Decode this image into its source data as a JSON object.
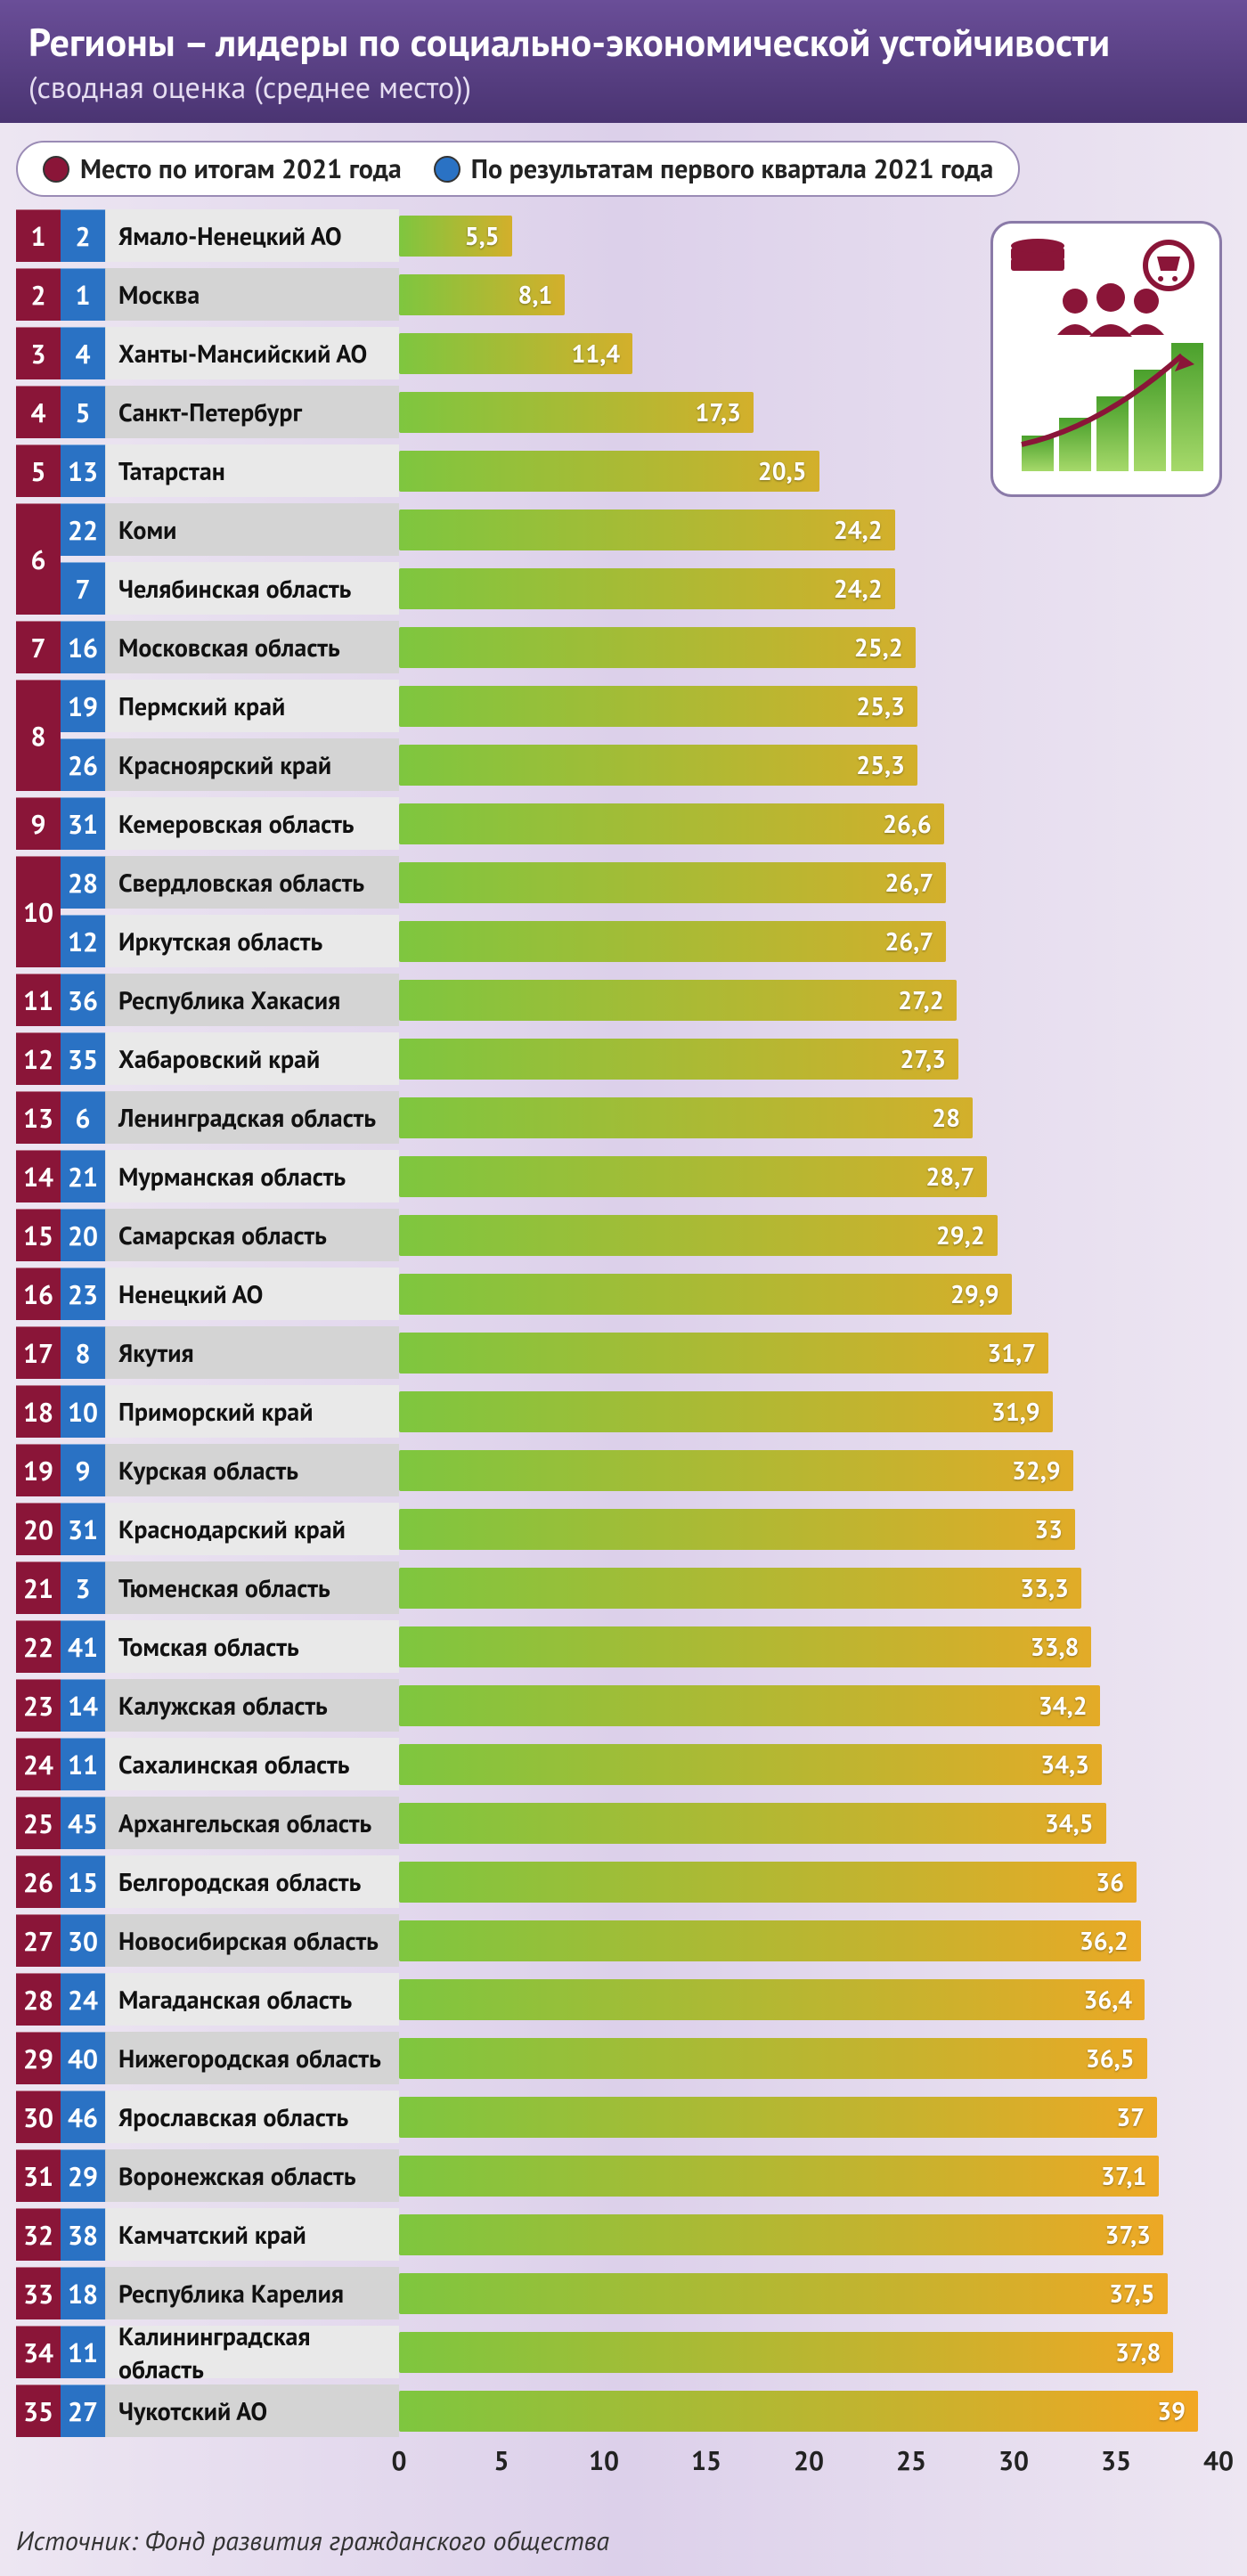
{
  "header": {
    "title": "Регионы – лидеры по социально-экономической устойчивости",
    "subtitle": "(сводная оценка (среднее место))"
  },
  "legend": {
    "items": [
      {
        "color": "#8a1538",
        "label": "Место по итогам 2021 года"
      },
      {
        "color": "#2a72c4",
        "label": "По результатам первого квартала 2021 года"
      }
    ]
  },
  "chart": {
    "type": "bar",
    "x_max": 40,
    "x_tick_step": 5,
    "bar_gradient": {
      "from": "#7ec63f",
      "to": "#f5a623"
    },
    "rank_red_color": "#8a1538",
    "rank_blue_color": "#2a72c4",
    "row_alt_colors": [
      "#e9e9e9",
      "#d4d4d4"
    ],
    "value_color_inside": "#ffffff",
    "value_color_outside": "#f5a623",
    "rows": [
      {
        "rank_year": 1,
        "rank_q1": 2,
        "name": "Ямало-Ненецкий АО",
        "value": 5.5,
        "label": "5,5"
      },
      {
        "rank_year": 2,
        "rank_q1": 1,
        "name": "Москва",
        "value": 8.1,
        "label": "8,1"
      },
      {
        "rank_year": 3,
        "rank_q1": 4,
        "name": "Ханты-Мансийский АО",
        "value": 11.4,
        "label": "11,4"
      },
      {
        "rank_year": 4,
        "rank_q1": 5,
        "name": "Санкт-Петербург",
        "value": 17.3,
        "label": "17,3"
      },
      {
        "rank_year": 5,
        "rank_q1": 13,
        "name": "Татарстан",
        "value": 20.5,
        "label": "20,5"
      },
      {
        "rank_year": 6,
        "rank_q1": 22,
        "name": "Коми",
        "value": 24.2,
        "label": "24,2"
      },
      {
        "rank_year": 6,
        "rank_q1": 7,
        "name": "Челябинская область",
        "value": 24.2,
        "label": "24,2",
        "merge_up_red": true
      },
      {
        "rank_year": 7,
        "rank_q1": 16,
        "name": "Московская область",
        "value": 25.2,
        "label": "25,2"
      },
      {
        "rank_year": 8,
        "rank_q1": 19,
        "name": "Пермский край",
        "value": 25.3,
        "label": "25,3"
      },
      {
        "rank_year": 8,
        "rank_q1": 26,
        "name": "Красноярский край",
        "value": 25.3,
        "label": "25,3",
        "merge_up_red": true
      },
      {
        "rank_year": 9,
        "rank_q1": 31,
        "name": "Кемеровская область",
        "value": 26.6,
        "label": "26,6"
      },
      {
        "rank_year": 10,
        "rank_q1": 28,
        "name": "Свердловская область",
        "value": 26.7,
        "label": "26,7"
      },
      {
        "rank_year": 10,
        "rank_q1": 12,
        "name": "Иркутская область",
        "value": 26.7,
        "label": "26,7",
        "merge_up_red": true
      },
      {
        "rank_year": 11,
        "rank_q1": 36,
        "name": "Республика Хакасия",
        "value": 27.2,
        "label": "27,2"
      },
      {
        "rank_year": 12,
        "rank_q1": 35,
        "name": "Хабаровский край",
        "value": 27.3,
        "label": "27,3"
      },
      {
        "rank_year": 13,
        "rank_q1": 6,
        "name": "Ленинградская область",
        "value": 28.0,
        "label": "28"
      },
      {
        "rank_year": 14,
        "rank_q1": 21,
        "name": "Мурманская область",
        "value": 28.7,
        "label": "28,7"
      },
      {
        "rank_year": 15,
        "rank_q1": 20,
        "name": "Самарская область",
        "value": 29.2,
        "label": "29,2"
      },
      {
        "rank_year": 16,
        "rank_q1": 23,
        "name": "Ненецкий АО",
        "value": 29.9,
        "label": "29,9"
      },
      {
        "rank_year": 17,
        "rank_q1": 8,
        "name": "Якутия",
        "value": 31.7,
        "label": "31,7"
      },
      {
        "rank_year": 18,
        "rank_q1": 10,
        "name": "Приморский край",
        "value": 31.9,
        "label": "31,9"
      },
      {
        "rank_year": 19,
        "rank_q1": 9,
        "name": "Курская область",
        "value": 32.9,
        "label": "32,9"
      },
      {
        "rank_year": 20,
        "rank_q1": 31,
        "name": "Краснодарский край",
        "value": 33.0,
        "label": "33"
      },
      {
        "rank_year": 21,
        "rank_q1": 3,
        "name": "Тюменская область",
        "value": 33.3,
        "label": "33,3"
      },
      {
        "rank_year": 22,
        "rank_q1": 41,
        "name": "Томская область",
        "value": 33.8,
        "label": "33,8"
      },
      {
        "rank_year": 23,
        "rank_q1": 14,
        "name": "Калужская область",
        "value": 34.2,
        "label": "34,2"
      },
      {
        "rank_year": 24,
        "rank_q1": 11,
        "name": "Сахалинская область",
        "value": 34.3,
        "label": "34,3"
      },
      {
        "rank_year": 25,
        "rank_q1": 45,
        "name": "Архангельская область",
        "value": 34.5,
        "label": "34,5"
      },
      {
        "rank_year": 26,
        "rank_q1": 15,
        "name": "Белгородская область",
        "value": 36.0,
        "label": "36"
      },
      {
        "rank_year": 27,
        "rank_q1": 30,
        "name": "Новосибирская область",
        "value": 36.2,
        "label": "36,2"
      },
      {
        "rank_year": 28,
        "rank_q1": 24,
        "name": "Магаданская область",
        "value": 36.4,
        "label": "36,4"
      },
      {
        "rank_year": 29,
        "rank_q1": 40,
        "name": "Нижегородская область",
        "value": 36.5,
        "label": "36,5"
      },
      {
        "rank_year": 30,
        "rank_q1": 46,
        "name": "Ярославская область",
        "value": 37.0,
        "label": "37"
      },
      {
        "rank_year": 31,
        "rank_q1": 29,
        "name": "Воронежская область",
        "value": 37.1,
        "label": "37,1"
      },
      {
        "rank_year": 32,
        "rank_q1": 38,
        "name": "Камчатский край",
        "value": 37.3,
        "label": "37,3"
      },
      {
        "rank_year": 33,
        "rank_q1": 18,
        "name": "Республика Карелия",
        "value": 37.5,
        "label": "37,5"
      },
      {
        "rank_year": 34,
        "rank_q1": 11,
        "name": "Калининградская область",
        "value": 37.8,
        "label": "37,8"
      },
      {
        "rank_year": 35,
        "rank_q1": 27,
        "name": "Чукотский АО",
        "value": 39.0,
        "label": "39"
      }
    ],
    "x_ticks": [
      0,
      5,
      10,
      15,
      20,
      25,
      30,
      35,
      40
    ]
  },
  "source": "Источник: Фонд развития гражданского общества",
  "icons": {
    "color_accent": "#8a1538",
    "color_green_from": "#a6d96a",
    "color_green_to": "#66bd33"
  }
}
